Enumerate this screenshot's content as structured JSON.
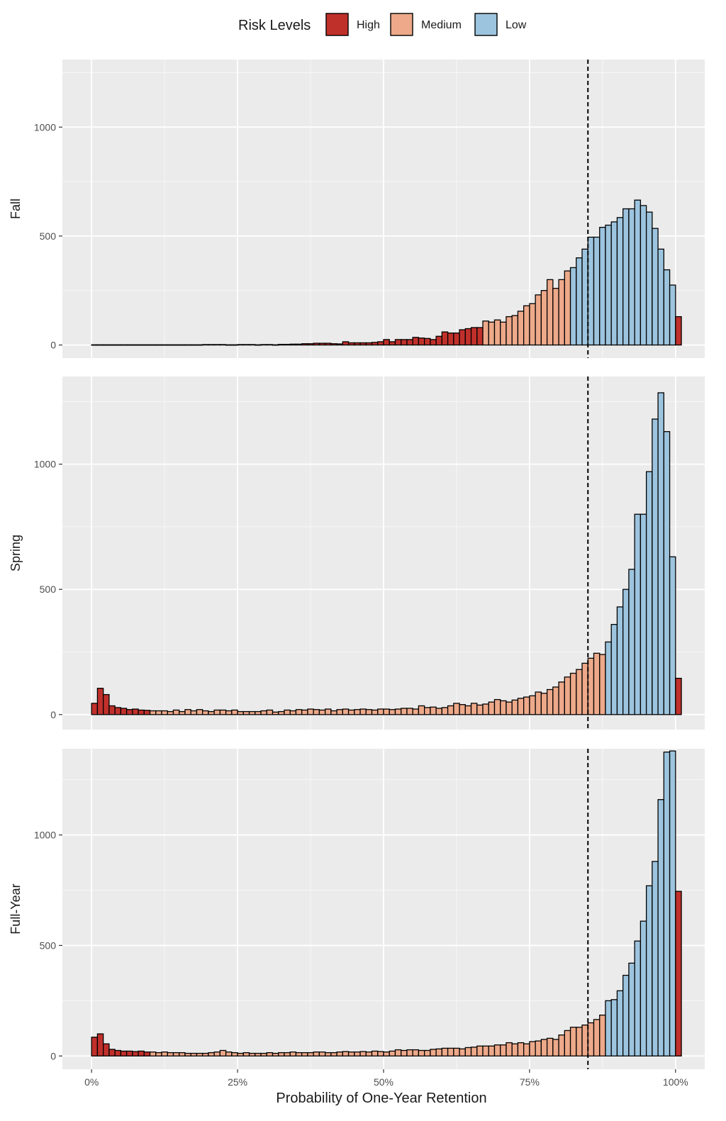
{
  "chart_data": {
    "type": "histogram",
    "xlabel": "Probability of One-Year Retention",
    "x_ticks": [
      "0%",
      "25%",
      "50%",
      "75%",
      "100%"
    ],
    "x_tick_values": [
      0,
      25,
      50,
      75,
      100
    ],
    "xlim": [
      -5,
      105
    ],
    "bin_width": 1,
    "threshold_line": {
      "value": 85,
      "style": "dashed"
    },
    "legend": {
      "title": "Risk Levels",
      "position": "top",
      "items": [
        {
          "label": "High",
          "color": "#C0302B"
        },
        {
          "label": "Medium",
          "color": "#EDA98A"
        },
        {
          "label": "Low",
          "color": "#9DC4DE"
        }
      ]
    },
    "panels": [
      {
        "label": "Fall",
        "y_ticks": [
          "0",
          "500",
          "1000"
        ],
        "y_tick_values": [
          0,
          500,
          1000
        ],
        "ylim": [
          -60,
          1310
        ],
        "bins_start": [
          1,
          67,
          82
        ],
        "bins_end": [
          67,
          82,
          100
        ],
        "counts": [
          1,
          1,
          1,
          1,
          1,
          1,
          1,
          1,
          1,
          1,
          1,
          1,
          1,
          1,
          1,
          1,
          1,
          1,
          1,
          2,
          2,
          2,
          2,
          1,
          1,
          2,
          2,
          2,
          1,
          2,
          2,
          1,
          3,
          3,
          4,
          4,
          6,
          6,
          8,
          8,
          8,
          6,
          5,
          15,
          10,
          10,
          10,
          10,
          12,
          15,
          25,
          15,
          25,
          25,
          25,
          35,
          32,
          30,
          25,
          40,
          60,
          55,
          55,
          70,
          75,
          80,
          80,
          110,
          105,
          115,
          105,
          130,
          135,
          155,
          180,
          190,
          230,
          250,
          300,
          260,
          300,
          340,
          355,
          400,
          440,
          495,
          495,
          540,
          550,
          565,
          585,
          625,
          625,
          665,
          640,
          610,
          535,
          440,
          345,
          275,
          130
        ]
      },
      {
        "label": "Spring",
        "y_ticks": [
          "0",
          "500",
          "1000"
        ],
        "y_tick_values": [
          0,
          500,
          1000
        ],
        "ylim": [
          -60,
          1350
        ],
        "bins_start": [
          0,
          10,
          88
        ],
        "bins_end": [
          10,
          88,
          100
        ],
        "counts": [
          45,
          105,
          80,
          35,
          28,
          25,
          20,
          22,
          18,
          17,
          15,
          15,
          15,
          12,
          18,
          12,
          20,
          15,
          20,
          15,
          12,
          18,
          18,
          15,
          18,
          12,
          12,
          12,
          12,
          15,
          18,
          10,
          12,
          18,
          15,
          20,
          18,
          22,
          20,
          18,
          22,
          15,
          20,
          22,
          18,
          20,
          22,
          20,
          18,
          22,
          22,
          20,
          22,
          25,
          25,
          22,
          35,
          28,
          30,
          25,
          28,
          35,
          45,
          40,
          35,
          45,
          38,
          42,
          50,
          60,
          55,
          50,
          58,
          65,
          70,
          75,
          90,
          85,
          100,
          110,
          130,
          150,
          165,
          180,
          205,
          225,
          245,
          240,
          290,
          360,
          430,
          500,
          580,
          800,
          800,
          970,
          1180,
          1285,
          1130,
          630,
          145
        ]
      },
      {
        "label": "Full-Year",
        "y_ticks": [
          "0",
          "500",
          "1000"
        ],
        "y_tick_values": [
          0,
          500,
          1000
        ],
        "ylim": [
          -60,
          1390
        ],
        "bins_start": [
          0,
          10,
          88
        ],
        "bins_end": [
          10,
          88,
          100
        ],
        "counts": [
          85,
          100,
          55,
          30,
          25,
          22,
          22,
          20,
          22,
          18,
          18,
          15,
          18,
          15,
          15,
          15,
          12,
          12,
          12,
          12,
          15,
          18,
          25,
          18,
          15,
          12,
          15,
          12,
          12,
          12,
          15,
          12,
          15,
          15,
          18,
          15,
          15,
          15,
          18,
          18,
          15,
          15,
          18,
          20,
          18,
          18,
          20,
          18,
          22,
          20,
          18,
          22,
          28,
          25,
          28,
          28,
          25,
          25,
          30,
          32,
          35,
          35,
          35,
          32,
          38,
          40,
          45,
          45,
          45,
          50,
          50,
          60,
          55,
          60,
          55,
          65,
          68,
          75,
          80,
          75,
          95,
          115,
          130,
          130,
          140,
          150,
          165,
          185,
          250,
          255,
          295,
          365,
          420,
          520,
          610,
          770,
          880,
          1160,
          1375,
          1380,
          745
        ]
      }
    ]
  }
}
